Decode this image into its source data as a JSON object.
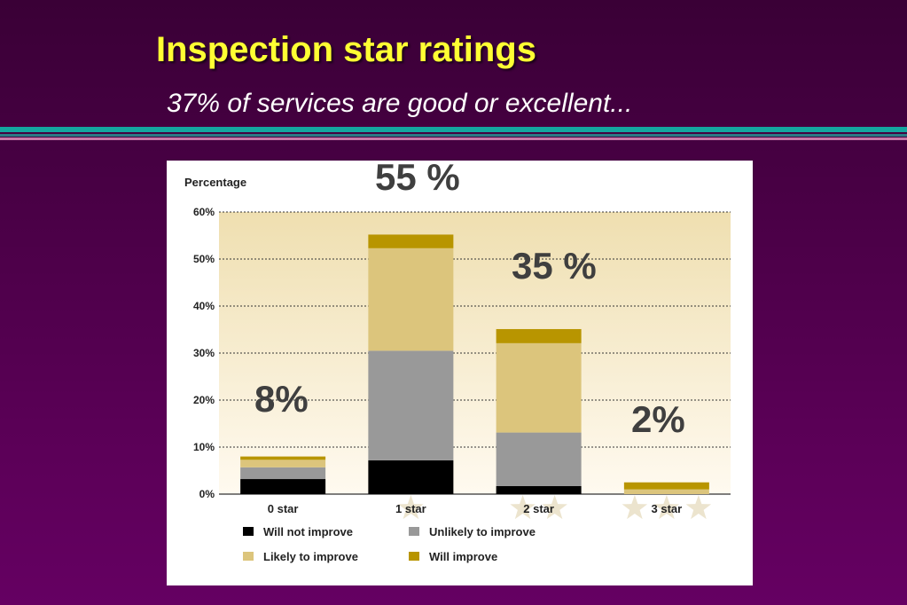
{
  "slide": {
    "title": "Inspection star ratings",
    "subtitle": "37% of services are good or excellent..."
  },
  "callouts": [
    {
      "label": "8%",
      "category": "0 star"
    },
    {
      "label": "55 %",
      "category": "1 star"
    },
    {
      "label": "35 %",
      "category": "2 star"
    },
    {
      "label": "2%",
      "category": "3 star"
    }
  ],
  "chart_data": {
    "type": "bar",
    "stacked": true,
    "ylabel": "Percentage",
    "ylim": [
      0,
      60
    ],
    "yticks": [
      0,
      10,
      20,
      30,
      40,
      50,
      60
    ],
    "ytick_labels": [
      "0%",
      "10%",
      "20%",
      "30%",
      "40%",
      "50%",
      "60%"
    ],
    "categories": [
      "0 star",
      "1 star",
      "2 star",
      "3 star"
    ],
    "star_counts": [
      0,
      1,
      2,
      3
    ],
    "series": [
      {
        "name": "Will not improve",
        "color": "#000000",
        "values": [
          3.2,
          7.2,
          1.7,
          0.0
        ]
      },
      {
        "name": "Unlikely to improve",
        "color": "#999999",
        "values": [
          2.5,
          23.3,
          11.4,
          0.0
        ]
      },
      {
        "name": "Likely to improve",
        "color": "#dcc57c",
        "values": [
          1.6,
          21.8,
          19.0,
          1.0
        ]
      },
      {
        "name": "Will improve",
        "color": "#b89500",
        "values": [
          0.7,
          2.9,
          3.0,
          1.5
        ]
      }
    ],
    "legend_position": "bottom",
    "grid": "dashed-horizontal",
    "colors": {
      "plot_bg_top": "#efdfb0",
      "plot_bg_bottom": "#fffaf0",
      "star": "#ece4ce"
    }
  }
}
